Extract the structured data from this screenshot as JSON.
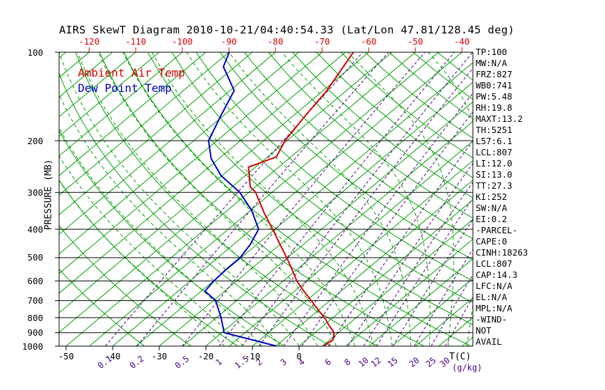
{
  "title": "AIRS SkewT Diagram 2010-10-21/04:40:54.33 (Lat/Lon 47.81/128.45 deg)",
  "legend": {
    "ambient": "Ambient Air Temp",
    "dewpoint": "Dew Point Temp"
  },
  "axes": {
    "y_title": "PRESSURE (MB)",
    "x_unit": "T(C)",
    "mix_unit": "(g/kg)",
    "pressure_ticks": [
      100,
      200,
      300,
      400,
      500,
      600,
      700,
      800,
      900,
      1000
    ],
    "top_temp_ticks": [
      -120,
      -110,
      -100,
      -90,
      -80,
      -70,
      -60,
      -50,
      -40
    ],
    "bottom_temp_ticks": [
      -50,
      -40,
      -30,
      -20,
      -10,
      0
    ]
  },
  "stats_panel": [
    "TP:100",
    "MW:N/A",
    "FRZ:827",
    "WB0:741",
    "PW:5.48",
    "RH:19.8",
    "MAXT:13.2",
    "TH:5251",
    "L57:6.1",
    "LCL:807",
    "LI:12.0",
    "SI:13.0",
    "TT:27.3",
    "KI:252",
    "SW:N/A",
    "EI:0.2",
    "-PARCEL-",
    "CAPE:0",
    "CINH:18263",
    "LCL:807",
    "CAP:14.3",
    "LFC:N/A",
    "EL:N/A",
    "MPL:N/A",
    "-WIND-",
    "NOT",
    "AVAIL"
  ],
  "colors": {
    "green": "#00a000",
    "red": "#d40000",
    "blue": "#0000c8",
    "purple": "#4b0082",
    "black": "#000000"
  },
  "chart_data": {
    "type": "line",
    "title": "AIRS SkewT Diagram 2010-10-21/04:40:54.33 (Lat/Lon 47.81/128.45 deg)",
    "x_axis": "Temperature (C), skewed 45 deg",
    "y_axis": "Pressure (MB), logarithmic",
    "ylim": [
      1000,
      100
    ],
    "top_axis_range_C": [
      -120,
      -40
    ],
    "bottom_axis_range_C": [
      -50,
      0
    ],
    "grid": {
      "isotherms_C": {
        "min": -130,
        "max": 40,
        "step": 5
      },
      "dry_adiabats_K": {
        "min": 240,
        "max": 440,
        "step": 10
      },
      "moist_adiabats_C": {
        "min": -16,
        "max": 40,
        "step": 4
      },
      "mixing_ratio_g_kg": [
        0.1,
        0.2,
        0.5,
        1,
        1.5,
        2,
        3,
        4,
        6,
        8,
        10,
        12,
        15,
        20,
        25,
        30
      ]
    },
    "series": [
      {
        "name": "Ambient Air Temp",
        "color": "#d40000",
        "points": [
          [
            100,
            -63.3
          ],
          [
            135,
            -59.2
          ],
          [
            163,
            -57.5
          ],
          [
            200,
            -55.4
          ],
          [
            227,
            -53.1
          ],
          [
            246,
            -56.5
          ],
          [
            287,
            -51.1
          ],
          [
            300,
            -48.5
          ],
          [
            351,
            -41.6
          ],
          [
            400,
            -35.5
          ],
          [
            451,
            -30.0
          ],
          [
            500,
            -25.2
          ],
          [
            549,
            -21.0
          ],
          [
            600,
            -17.1
          ],
          [
            650,
            -13.0
          ],
          [
            700,
            -9.0
          ],
          [
            749,
            -5.4
          ],
          [
            800,
            -1.8
          ],
          [
            849,
            1.1
          ],
          [
            900,
            4.1
          ],
          [
            952,
            5.7
          ],
          [
            1000,
            5.2
          ]
        ]
      },
      {
        "name": "Dew Point Temp",
        "color": "#0000c8",
        "points": [
          [
            100,
            -89.9
          ],
          [
            112,
            -87.5
          ],
          [
            135,
            -79.1
          ],
          [
            163,
            -75.7
          ],
          [
            200,
            -71.8
          ],
          [
            230,
            -66.7
          ],
          [
            263,
            -60.2
          ],
          [
            300,
            -51.9
          ],
          [
            345,
            -44.8
          ],
          [
            400,
            -38.5
          ],
          [
            451,
            -36.4
          ],
          [
            500,
            -35.2
          ],
          [
            549,
            -35.2
          ],
          [
            600,
            -34.9
          ],
          [
            650,
            -34.2
          ],
          [
            700,
            -29.5
          ],
          [
            800,
            -24.0
          ],
          [
            900,
            -19.5
          ],
          [
            1000,
            -4.8
          ]
        ]
      }
    ]
  }
}
